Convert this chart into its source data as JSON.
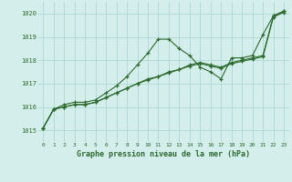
{
  "title": "Graphe pression niveau de la mer (hPa)",
  "background_color": "#d4eeec",
  "grid_color": "#b0d8d4",
  "line_color": "#2d6a2d",
  "xlim": [
    -0.5,
    23.5
  ],
  "ylim": [
    1014.5,
    1020.5
  ],
  "yticks": [
    1015,
    1016,
    1017,
    1018,
    1019,
    1020
  ],
  "xticks": [
    0,
    1,
    2,
    3,
    4,
    5,
    6,
    7,
    8,
    9,
    10,
    11,
    12,
    13,
    14,
    15,
    16,
    17,
    18,
    19,
    20,
    21,
    22,
    23
  ],
  "series1": [
    1015.1,
    1015.9,
    1016.1,
    1016.2,
    1016.2,
    1016.3,
    1016.6,
    1016.9,
    1017.3,
    1017.8,
    1018.3,
    1018.9,
    1018.9,
    1018.5,
    1018.2,
    1017.7,
    1017.5,
    1017.2,
    1018.1,
    1018.1,
    1018.2,
    1019.1,
    1019.9,
    1020.1
  ],
  "series2": [
    1015.1,
    1015.9,
    1016.0,
    1016.1,
    1016.1,
    1016.2,
    1016.4,
    1016.6,
    1016.8,
    1017.0,
    1017.2,
    1017.3,
    1017.5,
    1017.6,
    1017.8,
    1017.9,
    1017.8,
    1017.7,
    1017.9,
    1018.0,
    1018.1,
    1018.2,
    1019.9,
    1020.1
  ],
  "series3": [
    1015.1,
    1015.9,
    1016.0,
    1016.1,
    1016.1,
    1016.2,
    1016.4,
    1016.6,
    1016.8,
    1017.0,
    1017.15,
    1017.3,
    1017.45,
    1017.6,
    1017.75,
    1017.85,
    1017.75,
    1017.65,
    1017.85,
    1017.95,
    1018.05,
    1018.15,
    1019.85,
    1020.05
  ]
}
